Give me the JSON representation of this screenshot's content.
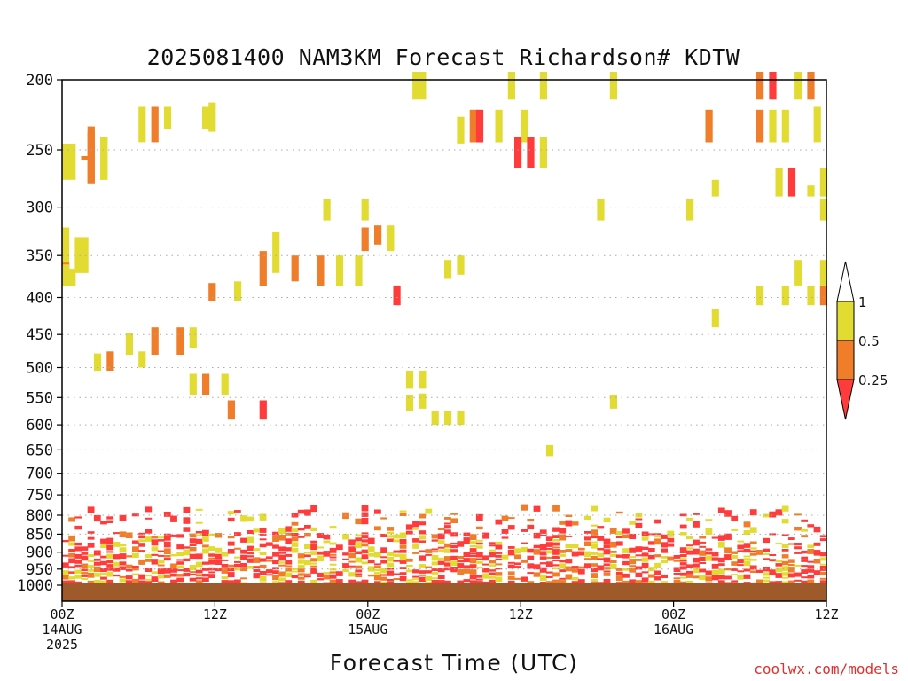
{
  "chart_data": {
    "type": "heatmap",
    "title": "2025081400 NAM3KM Forecast Richardson# KDTW",
    "xlabel": "Forecast Time (UTC)",
    "credit": "coolwx.com/models",
    "x_unit": "forecast hour",
    "xlim": [
      0,
      60
    ],
    "y_unit": "hPa",
    "ylim": [
      1000,
      200
    ],
    "y_scale": "log",
    "grid": "dotted horizontal",
    "x_ticks": [
      {
        "value": 0,
        "lines": [
          "00Z",
          "14AUG",
          "2025"
        ]
      },
      {
        "value": 12,
        "lines": [
          "12Z"
        ]
      },
      {
        "value": 24,
        "lines": [
          "00Z",
          "15AUG"
        ]
      },
      {
        "value": 36,
        "lines": [
          "12Z"
        ]
      },
      {
        "value": 48,
        "lines": [
          "00Z",
          "16AUG"
        ]
      },
      {
        "value": 60,
        "lines": [
          "12Z"
        ]
      }
    ],
    "y_ticks": [
      200,
      250,
      300,
      350,
      400,
      450,
      500,
      550,
      600,
      650,
      700,
      750,
      800,
      850,
      900,
      950,
      1000
    ],
    "legend": {
      "placement": "right",
      "labels": [
        "1",
        "0.5",
        "0.25"
      ],
      "colors": {
        "ri_0_25": "#ff3b3b",
        "ri_025_05": "#ef7d2a",
        "ri_05_1": "#e2dc32",
        "ground": "#9e5a2a"
      }
    },
    "levels": [
      "lt_0.25",
      "0.25-0.5",
      "0.5-1"
    ],
    "cells": [
      [
        0,
        250,
        1,
        245,
        275
      ],
      [
        0.5,
        250,
        1,
        245,
        275
      ],
      [
        2,
        260,
        0.5,
        232,
        278
      ],
      [
        3,
        230,
        1,
        240,
        275
      ],
      [
        3,
        290,
        1,
        240,
        275
      ],
      [
        2,
        280,
        0.5,
        236,
        278
      ],
      [
        1.5,
        250,
        0.5,
        255,
        0.5
      ],
      [
        0,
        325,
        1,
        320,
        380
      ],
      [
        1,
        325,
        1,
        330,
        370
      ],
      [
        1.5,
        345,
        1,
        330,
        370
      ],
      [
        0,
        360,
        0.5,
        358,
        380
      ],
      [
        0,
        370,
        1,
        360,
        385
      ],
      [
        0.5,
        370,
        1,
        365,
        385
      ],
      [
        6,
        225,
        1,
        218,
        244
      ],
      [
        7,
        225,
        0.5,
        218,
        244
      ],
      [
        8,
        222,
        1,
        218,
        234
      ],
      [
        11,
        222,
        1,
        218,
        234
      ],
      [
        11.5,
        218,
        1,
        215,
        236
      ],
      [
        5,
        462,
        1,
        448,
        480
      ],
      [
        7,
        460,
        0.5,
        440,
        480
      ],
      [
        9,
        452,
        0.5,
        440,
        480
      ],
      [
        10,
        447,
        1,
        440,
        470
      ],
      [
        2.5,
        490,
        1,
        478,
        505
      ],
      [
        3.5,
        490,
        0.5,
        475,
        505
      ],
      [
        6,
        487,
        1,
        475,
        500
      ],
      [
        11.5,
        392,
        0.5,
        382,
        405
      ],
      [
        13.5,
        395,
        1,
        380,
        405
      ],
      [
        10,
        525,
        1,
        510,
        545
      ],
      [
        11,
        525,
        0.5,
        510,
        545
      ],
      [
        12.5,
        525,
        1,
        510,
        545
      ],
      [
        13,
        570,
        0.5,
        555,
        590
      ],
      [
        15.5,
        570,
        0,
        555,
        590
      ],
      [
        15.5,
        370,
        0.5,
        345,
        385
      ],
      [
        16.5,
        350,
        1,
        325,
        370
      ],
      [
        18,
        370,
        0.5,
        350,
        380
      ],
      [
        20,
        365,
        0.5,
        350,
        385
      ],
      [
        21.5,
        365,
        1,
        350,
        385
      ],
      [
        23,
        350,
        1,
        350,
        385
      ],
      [
        20.5,
        302,
        1,
        292,
        313
      ],
      [
        23.5,
        302,
        1,
        292,
        313
      ],
      [
        23.5,
        330,
        0.5,
        320,
        345
      ],
      [
        24.5,
        330,
        0.5,
        318,
        338
      ],
      [
        25.5,
        330,
        1,
        318,
        345
      ],
      [
        26,
        400,
        0,
        385,
        410
      ],
      [
        27.5,
        208,
        1,
        195,
        213
      ],
      [
        28,
        208,
        1,
        195,
        213
      ],
      [
        30,
        365,
        1,
        355,
        377
      ],
      [
        31,
        360,
        1,
        350,
        372
      ],
      [
        27,
        520,
        1,
        505,
        535
      ],
      [
        28,
        520,
        1,
        505,
        535
      ],
      [
        27,
        550,
        1,
        545,
        575
      ],
      [
        28,
        556,
        1,
        543,
        570
      ],
      [
        29,
        588,
        1,
        575,
        600
      ],
      [
        30,
        588,
        1,
        575,
        600
      ],
      [
        31,
        588,
        1,
        575,
        600
      ],
      [
        31,
        235,
        1,
        225,
        245
      ],
      [
        32,
        230,
        0.5,
        220,
        244
      ],
      [
        32.5,
        230,
        0,
        220,
        244
      ],
      [
        34,
        230,
        1,
        220,
        244
      ],
      [
        36,
        228,
        1,
        220,
        244
      ],
      [
        35,
        208,
        1,
        195,
        213
      ],
      [
        37.5,
        200,
        1,
        195,
        213
      ],
      [
        35.5,
        252,
        0,
        240,
        265
      ],
      [
        36.5,
        252,
        0,
        240,
        265
      ],
      [
        37.5,
        252,
        1,
        240,
        265
      ],
      [
        38,
        650,
        1,
        640,
        663
      ],
      [
        42,
        300,
        1,
        292,
        313
      ],
      [
        43,
        200,
        1,
        195,
        213
      ],
      [
        43,
        555,
        1,
        545,
        570
      ],
      [
        49,
        300,
        1,
        292,
        313
      ],
      [
        51,
        425,
        1,
        415,
        440
      ],
      [
        50.5,
        228,
        0.5,
        220,
        244
      ],
      [
        51,
        263,
        1,
        275,
        290
      ],
      [
        54.5,
        200,
        0.5,
        195,
        213
      ],
      [
        55.5,
        200,
        0,
        195,
        213
      ],
      [
        54.5,
        230,
        0.5,
        220,
        244
      ],
      [
        55.5,
        230,
        1,
        220,
        244
      ],
      [
        56.5,
        230,
        1,
        220,
        244
      ],
      [
        57.5,
        200,
        1,
        195,
        213
      ],
      [
        58.5,
        200,
        0.5,
        195,
        213
      ],
      [
        59,
        225,
        1,
        218,
        244
      ],
      [
        56,
        270,
        1,
        265,
        290
      ],
      [
        57,
        270,
        0,
        265,
        290
      ],
      [
        58.5,
        270,
        1,
        280,
        290
      ],
      [
        59.5,
        270,
        1,
        265,
        290
      ],
      [
        59.5,
        300,
        1,
        292,
        313
      ],
      [
        54.5,
        398,
        1,
        385,
        410
      ],
      [
        56.5,
        398,
        1,
        385,
        410
      ],
      [
        58.5,
        398,
        1,
        385,
        410
      ],
      [
        59.5,
        398,
        0.5,
        385,
        410
      ],
      [
        57.5,
        365,
        1,
        355,
        385
      ],
      [
        59.5,
        365,
        1,
        355,
        385
      ]
    ],
    "pbl_profile": "mixed Ri<0.25 and 0.25-1 layers between ~780 and ~1000 hPa across all forecast hours",
    "ground_level": 1000
  }
}
